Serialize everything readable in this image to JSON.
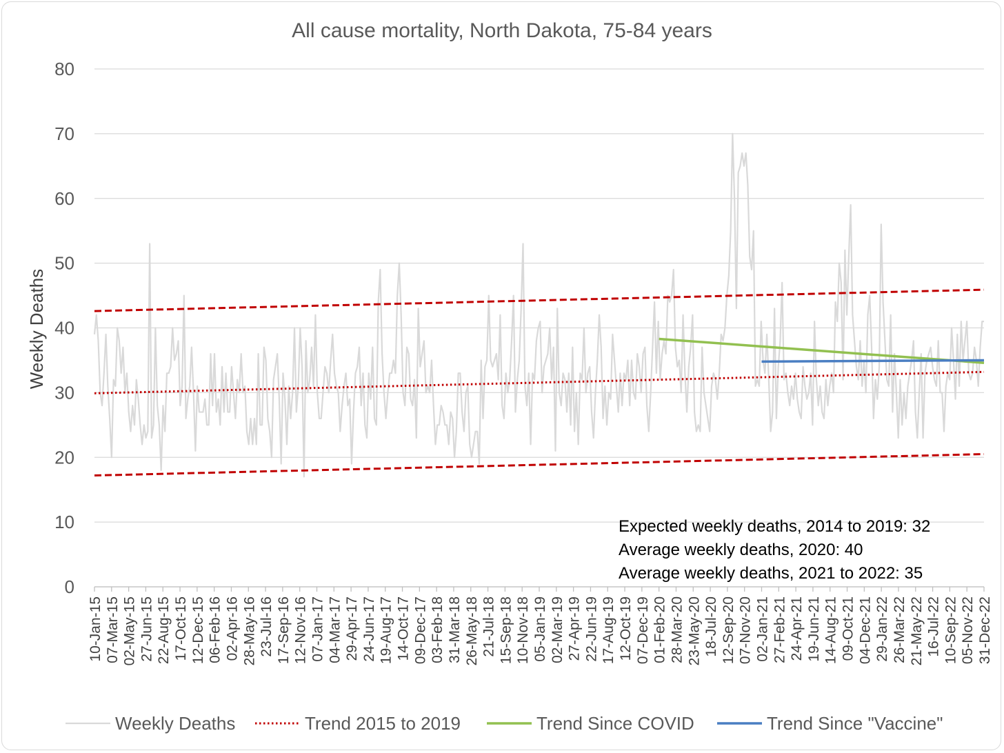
{
  "chart_data": {
    "type": "line",
    "title": "All cause mortality, North Dakota, 75-84 years",
    "xlabel": "",
    "ylabel": "Weekly Deaths",
    "ylim": [
      0,
      80
    ],
    "yticks": [
      0,
      10,
      20,
      30,
      40,
      50,
      60,
      70,
      80
    ],
    "grid": true,
    "legend_position": "bottom",
    "x_tick_labels": [
      "10-Jan-15",
      "07-Mar-15",
      "02-May-15",
      "27-Jun-15",
      "22-Aug-15",
      "17-Oct-15",
      "12-Dec-15",
      "06-Feb-16",
      "02-Apr-16",
      "28-May-16",
      "23-Jul-16",
      "17-Sep-16",
      "12-Nov-16",
      "07-Jan-17",
      "04-Mar-17",
      "29-Apr-17",
      "24-Jun-17",
      "19-Aug-17",
      "14-Oct-17",
      "09-Dec-17",
      "03-Feb-18",
      "31-Mar-18",
      "26-May-18",
      "21-Jul-18",
      "15-Sep-18",
      "10-Nov-18",
      "05-Jan-19",
      "02-Mar-19",
      "27-Apr-19",
      "22-Jun-19",
      "17-Aug-19",
      "12-Oct-19",
      "07-Dec-19",
      "01-Feb-20",
      "28-Mar-20",
      "23-May-20",
      "18-Jul-20",
      "12-Sep-20",
      "07-Nov-20",
      "02-Jan-21",
      "27-Feb-21",
      "24-Apr-21",
      "19-Jun-21",
      "14-Aug-21",
      "09-Oct-21",
      "04-Dec-21",
      "29-Jan-22",
      "26-Mar-22",
      "21-May-22",
      "16-Jul-22",
      "10-Sep-22",
      "05-Nov-22",
      "31-Dec-22"
    ],
    "series": [
      {
        "name": "Weekly Deaths",
        "color": "#d9d9d9",
        "style": "solid",
        "values": [
          39,
          42,
          38,
          30,
          28,
          33,
          39,
          31,
          26,
          20,
          32,
          31,
          40,
          38,
          33,
          37,
          30,
          33,
          27,
          24,
          28,
          25,
          32,
          29,
          25,
          22,
          25,
          23,
          24,
          53,
          23,
          25,
          40,
          28,
          25,
          18,
          28,
          24,
          33,
          33,
          34,
          40,
          35,
          36,
          38,
          28,
          31,
          45,
          26,
          29,
          31,
          37,
          30,
          21,
          31,
          27,
          27,
          27,
          29,
          25,
          25,
          36,
          28,
          36,
          27,
          29,
          25,
          34,
          27,
          33,
          27,
          27,
          34,
          30,
          26,
          32,
          30,
          36,
          30,
          31,
          24,
          22,
          26,
          22,
          26,
          22,
          36,
          25,
          25,
          37,
          35,
          26,
          24,
          20,
          32,
          34,
          36,
          29,
          19,
          33,
          29,
          22,
          31,
          26,
          30,
          40,
          27,
          31,
          40,
          34,
          17,
          38,
          30,
          32,
          37,
          31,
          42,
          30,
          26,
          26,
          30,
          34,
          33,
          30,
          35,
          39,
          33,
          31,
          30,
          24,
          28,
          31,
          33,
          28,
          29,
          19,
          27,
          33,
          34,
          37,
          28,
          33,
          25,
          23,
          33,
          29,
          37,
          26,
          25,
          44,
          49,
          36,
          30,
          26,
          30,
          33,
          33,
          35,
          33,
          45,
          50,
          42,
          30,
          28,
          37,
          36,
          29,
          28,
          32,
          23,
          43,
          34,
          36,
          38,
          30,
          31,
          30,
          35,
          28,
          22,
          25,
          25,
          28,
          27,
          25,
          25,
          22,
          27,
          26,
          20,
          24,
          33,
          33,
          27,
          24,
          30,
          31,
          22,
          20,
          22,
          24,
          24,
          19,
          35,
          26,
          34,
          35,
          45,
          35,
          34,
          35,
          36,
          32,
          42,
          28,
          26,
          33,
          30,
          32,
          38,
          45,
          27,
          32,
          35,
          43,
          53,
          31,
          28,
          33,
          22,
          33,
          32,
          38,
          40,
          41,
          30,
          34,
          35,
          36,
          40,
          32,
          37,
          21,
          43,
          30,
          28,
          33,
          32,
          27,
          33,
          25,
          37,
          24,
          30,
          22,
          33,
          32,
          40,
          30,
          33,
          34,
          27,
          23,
          30,
          35,
          42,
          37,
          26,
          31,
          25,
          30,
          29,
          39,
          35,
          31,
          27,
          33,
          28,
          33,
          32,
          35,
          28,
          35,
          30,
          29,
          36,
          34,
          30,
          36,
          37,
          28,
          24,
          30,
          37,
          44,
          33,
          41,
          32,
          36,
          38,
          36,
          45,
          44,
          45,
          49,
          37,
          34,
          35,
          30,
          42,
          33,
          27,
          34,
          37,
          42,
          27,
          24,
          25,
          24,
          37,
          30,
          28,
          26,
          24,
          31,
          33,
          32,
          29,
          33,
          39,
          38,
          40,
          45,
          48,
          55,
          70,
          60,
          43,
          64,
          65,
          67,
          65,
          67,
          62,
          51,
          49,
          55,
          31,
          32,
          31,
          41,
          35,
          33,
          39,
          32,
          24,
          27,
          43,
          26,
          34,
          38,
          47,
          32,
          33,
          30,
          28,
          31,
          29,
          33,
          29,
          27,
          26,
          34,
          31,
          29,
          30,
          33,
          25,
          41,
          32,
          28,
          31,
          27,
          26,
          32,
          28,
          31,
          33,
          30,
          44,
          41,
          50,
          47,
          32,
          52,
          42,
          51,
          59,
          42,
          38,
          34,
          32,
          38,
          31,
          35,
          30,
          42,
          45,
          37,
          26,
          32,
          29,
          34,
          56,
          44,
          38,
          32,
          31,
          42,
          27,
          36,
          30,
          23,
          32,
          25,
          30,
          26,
          31,
          33,
          35,
          38,
          27,
          23,
          30,
          36,
          23,
          33,
          35,
          36,
          37,
          34,
          32,
          31,
          38,
          30,
          30,
          24,
          31,
          33,
          32,
          40,
          35,
          29,
          39,
          31,
          41,
          35,
          38,
          41,
          33,
          32,
          33,
          37,
          35,
          31,
          37,
          41,
          41
        ]
      },
      {
        "name": "Trend 2015 to 2019",
        "color": "#c00000",
        "style": "dotted",
        "x_range": [
          "10-Jan-15",
          "31-Dec-22"
        ],
        "y_range": [
          29.9,
          33.2
        ]
      },
      {
        "name": "",
        "color": "#c00000",
        "style": "dashed",
        "x_range": [
          "10-Jan-15",
          "31-Dec-22"
        ],
        "y_range": [
          42.6,
          45.9
        ]
      },
      {
        "name": "",
        "color": "#c00000",
        "style": "dashed",
        "x_range": [
          "10-Jan-15",
          "31-Dec-22"
        ],
        "y_range": [
          17.2,
          20.5
        ]
      },
      {
        "name": "Trend Since COVID",
        "color": "#92c050",
        "style": "solid",
        "x_range": [
          "01-Feb-20",
          "31-Dec-22"
        ],
        "y_range": [
          38.3,
          34.6
        ]
      },
      {
        "name": "Trend Since \"Vaccine\"",
        "color": "#4a7ec2",
        "style": "solid",
        "x_range": [
          "02-Jan-21",
          "31-Dec-22"
        ],
        "y_range": [
          34.8,
          35.0
        ]
      }
    ],
    "annotations": [
      "Expected weekly deaths, 2014 to 2019: 32",
      "Average weekly deaths, 2020: 40",
      "Average weekly deaths, 2021 to 2022: 35"
    ]
  }
}
